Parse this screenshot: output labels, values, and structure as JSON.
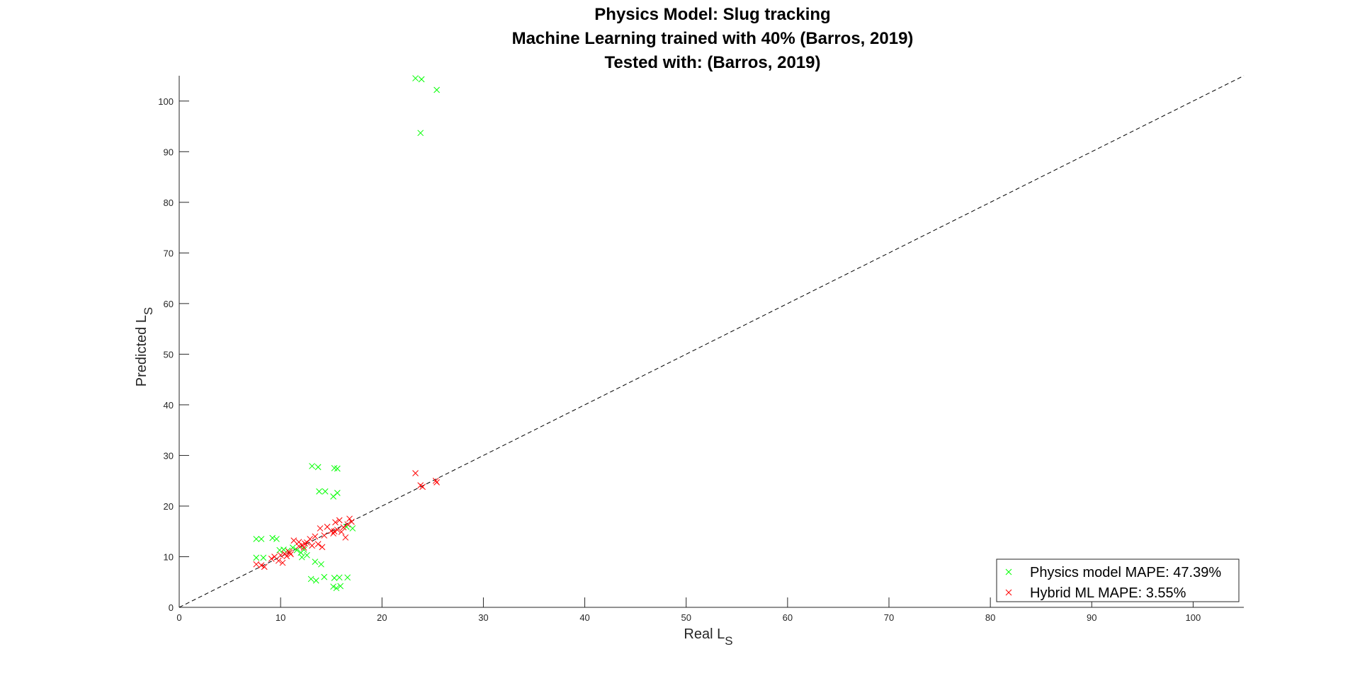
{
  "chart_data": {
    "type": "scatter",
    "title": [
      "Physics Model: Slug tracking",
      "Machine Learning trained with 40% (Barros, 2019)",
      "Tested with: (Barros, 2019)"
    ],
    "xlabel": {
      "main": "Real L",
      "sub": "S"
    },
    "ylabel": {
      "main": "Predicted L",
      "sub": "S"
    },
    "xlim": [
      0,
      105
    ],
    "ylim": [
      0,
      105
    ],
    "xticks": [
      0,
      10,
      20,
      30,
      40,
      50,
      60,
      70,
      80,
      90,
      100
    ],
    "yticks": [
      0,
      10,
      20,
      30,
      40,
      50,
      60,
      70,
      80,
      90,
      100
    ],
    "grid": false,
    "legend_position": "bottom-right",
    "reference_line": {
      "style": "dashed",
      "color": "#000000",
      "x": [
        0,
        105
      ],
      "y": [
        0,
        105
      ]
    },
    "series": [
      {
        "name": "Physics model MAPE: 47.39%",
        "marker": "x",
        "color": "#00ff00",
        "points": [
          [
            23.3,
            104.5
          ],
          [
            23.9,
            104.3
          ],
          [
            25.4,
            102.2
          ],
          [
            23.8,
            93.7
          ],
          [
            13.1,
            27.9
          ],
          [
            13.7,
            27.7
          ],
          [
            15.3,
            27.5
          ],
          [
            15.6,
            27.4
          ],
          [
            13.8,
            22.9
          ],
          [
            14.4,
            22.9
          ],
          [
            15.6,
            22.6
          ],
          [
            15.2,
            21.9
          ],
          [
            7.6,
            13.5
          ],
          [
            8.1,
            13.5
          ],
          [
            9.2,
            13.7
          ],
          [
            9.6,
            13.5
          ],
          [
            7.6,
            9.8
          ],
          [
            8.3,
            9.8
          ],
          [
            9.9,
            11.3
          ],
          [
            10.3,
            11.4
          ],
          [
            10.7,
            11.2
          ],
          [
            11.2,
            11.8
          ],
          [
            11.6,
            11.3
          ],
          [
            12.0,
            10.8
          ],
          [
            12.3,
            11.4
          ],
          [
            12.6,
            10.3
          ],
          [
            12.1,
            9.9
          ],
          [
            13.4,
            9.0
          ],
          [
            14.0,
            8.5
          ],
          [
            13.0,
            5.6
          ],
          [
            13.5,
            5.3
          ],
          [
            14.3,
            6.0
          ],
          [
            15.3,
            5.8
          ],
          [
            15.8,
            5.9
          ],
          [
            16.6,
            5.9
          ],
          [
            15.2,
            4.1
          ],
          [
            15.5,
            3.8
          ],
          [
            15.9,
            4.2
          ],
          [
            16.5,
            15.9
          ],
          [
            17.1,
            15.6
          ]
        ]
      },
      {
        "name": "Hybrid ML MAPE: 3.55%",
        "marker": "x",
        "color": "#ff0000",
        "points": [
          [
            23.3,
            26.5
          ],
          [
            23.8,
            24.1
          ],
          [
            24.0,
            23.8
          ],
          [
            25.3,
            25.0
          ],
          [
            25.4,
            24.7
          ],
          [
            7.6,
            8.5
          ],
          [
            8.1,
            8.3
          ],
          [
            8.4,
            8.0
          ],
          [
            9.1,
            9.6
          ],
          [
            9.4,
            10.0
          ],
          [
            9.8,
            9.2
          ],
          [
            10.0,
            10.3
          ],
          [
            10.2,
            8.8
          ],
          [
            10.4,
            10.6
          ],
          [
            10.6,
            10.1
          ],
          [
            10.8,
            11.0
          ],
          [
            11.0,
            10.5
          ],
          [
            11.3,
            13.2
          ],
          [
            11.8,
            12.9
          ],
          [
            12.1,
            12.3
          ],
          [
            12.3,
            11.8
          ],
          [
            12.6,
            12.8
          ],
          [
            12.9,
            13.5
          ],
          [
            13.1,
            12.2
          ],
          [
            13.4,
            14.0
          ],
          [
            13.7,
            12.5
          ],
          [
            13.9,
            15.6
          ],
          [
            14.1,
            11.9
          ],
          [
            14.3,
            14.2
          ],
          [
            14.6,
            15.9
          ],
          [
            15.0,
            15.1
          ],
          [
            15.2,
            14.6
          ],
          [
            15.4,
            16.8
          ],
          [
            15.6,
            15.3
          ],
          [
            15.8,
            17.2
          ],
          [
            16.0,
            14.9
          ],
          [
            16.2,
            15.8
          ],
          [
            16.4,
            13.8
          ],
          [
            16.6,
            16.4
          ],
          [
            16.8,
            17.5
          ],
          [
            17.0,
            16.9
          ],
          [
            11.8,
            12.1
          ],
          [
            12.4,
            12.6
          ],
          [
            10.9,
            10.8
          ],
          [
            15.3,
            15.0
          ]
        ]
      }
    ]
  }
}
